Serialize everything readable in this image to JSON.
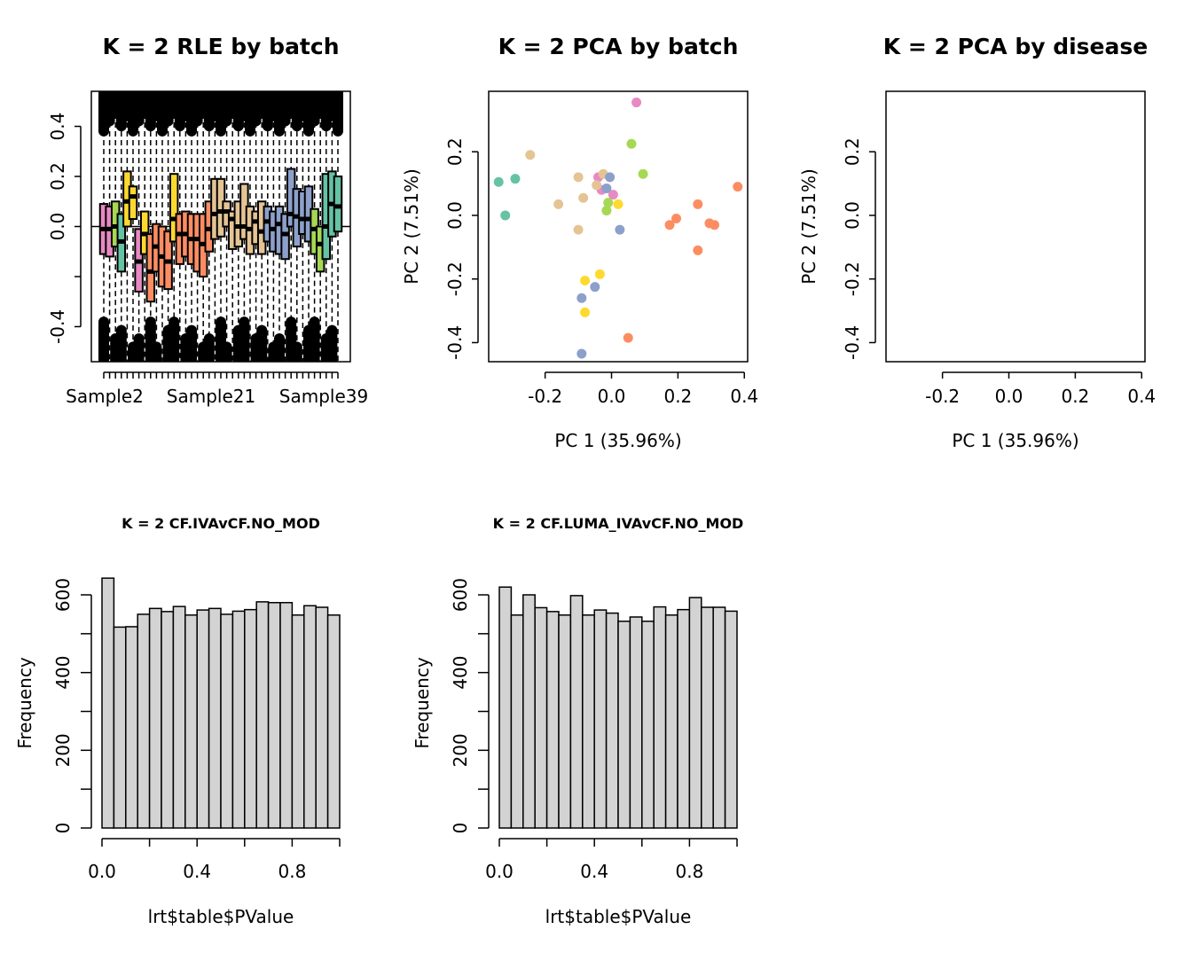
{
  "chart_data": [
    {
      "type": "box",
      "title": "K = 2 RLE by batch",
      "x_tick_labels": [
        "Sample2",
        "Sample21",
        "Sample39"
      ],
      "ylim": [
        -0.54,
        0.54
      ],
      "yticks": [
        -0.4,
        0.0,
        0.2,
        0.4
      ],
      "reference_line": 0,
      "boxes": [
        {
          "batch": 1,
          "q1": -0.11,
          "median": -0.01,
          "q3": 0.09
        },
        {
          "batch": 1,
          "q1": -0.12,
          "median": -0.01,
          "q3": 0.08
        },
        {
          "batch": 2,
          "q1": -0.08,
          "median": 0.0,
          "q3": 0.1
        },
        {
          "batch": 3,
          "q1": -0.18,
          "median": -0.06,
          "q3": 0.05
        },
        {
          "batch": 4,
          "q1": 0.0,
          "median": 0.1,
          "q3": 0.22
        },
        {
          "batch": 4,
          "q1": 0.03,
          "median": 0.12,
          "q3": 0.16
        },
        {
          "batch": 1,
          "q1": -0.26,
          "median": -0.14,
          "q3": -0.01
        },
        {
          "batch": 4,
          "q1": -0.11,
          "median": -0.03,
          "q3": 0.06
        },
        {
          "batch": 5,
          "q1": -0.3,
          "median": -0.18,
          "q3": -0.03
        },
        {
          "batch": 5,
          "q1": -0.18,
          "median": -0.08,
          "q3": 0.01
        },
        {
          "batch": 5,
          "q1": -0.24,
          "median": -0.12,
          "q3": 0.0
        },
        {
          "batch": 5,
          "q1": -0.25,
          "median": -0.14,
          "q3": -0.02
        },
        {
          "batch": 4,
          "q1": -0.06,
          "median": 0.03,
          "q3": 0.21
        },
        {
          "batch": 5,
          "q1": -0.15,
          "median": -0.03,
          "q3": 0.05
        },
        {
          "batch": 5,
          "q1": -0.12,
          "median": -0.03,
          "q3": 0.06
        },
        {
          "batch": 5,
          "q1": -0.15,
          "median": -0.05,
          "q3": 0.05
        },
        {
          "batch": 5,
          "q1": -0.18,
          "median": -0.05,
          "q3": 0.05
        },
        {
          "batch": 5,
          "q1": -0.2,
          "median": -0.07,
          "q3": 0.05
        },
        {
          "batch": 5,
          "q1": -0.1,
          "median": -0.01,
          "q3": 0.1
        },
        {
          "batch": 6,
          "q1": -0.05,
          "median": 0.05,
          "q3": 0.19
        },
        {
          "batch": 6,
          "q1": -0.04,
          "median": 0.06,
          "q3": 0.19
        },
        {
          "batch": 6,
          "q1": 0.0,
          "median": 0.06,
          "q3": 0.1
        },
        {
          "batch": 6,
          "q1": -0.09,
          "median": 0.03,
          "q3": 0.06
        },
        {
          "batch": 6,
          "q1": -0.08,
          "median": 0.0,
          "q3": 0.1
        },
        {
          "batch": 6,
          "q1": -0.05,
          "median": 0.0,
          "q3": 0.17
        },
        {
          "batch": 6,
          "q1": -0.11,
          "median": -0.01,
          "q3": 0.08
        },
        {
          "batch": 6,
          "q1": -0.07,
          "median": 0.02,
          "q3": 0.06
        },
        {
          "batch": 6,
          "q1": -0.11,
          "median": -0.02,
          "q3": 0.1
        },
        {
          "batch": 7,
          "q1": -0.06,
          "median": 0.02,
          "q3": 0.08
        },
        {
          "batch": 7,
          "q1": -0.1,
          "median": -0.01,
          "q3": 0.06
        },
        {
          "batch": 7,
          "q1": -0.11,
          "median": 0.01,
          "q3": 0.08
        },
        {
          "batch": 7,
          "q1": -0.13,
          "median": -0.03,
          "q3": 0.05
        },
        {
          "batch": 7,
          "q1": 0.0,
          "median": 0.05,
          "q3": 0.23
        },
        {
          "batch": 7,
          "q1": -0.08,
          "median": 0.04,
          "q3": 0.15
        },
        {
          "batch": 7,
          "q1": -0.03,
          "median": 0.03,
          "q3": 0.14
        },
        {
          "batch": 7,
          "q1": -0.06,
          "median": 0.03,
          "q3": 0.16
        },
        {
          "batch": 2,
          "q1": -0.11,
          "median": -0.01,
          "q3": 0.07
        },
        {
          "batch": 2,
          "q1": -0.18,
          "median": -0.07,
          "q3": 0.0
        },
        {
          "batch": 8,
          "q1": -0.13,
          "median": 0.0,
          "q3": 0.21
        },
        {
          "batch": 8,
          "q1": -0.04,
          "median": 0.09,
          "q3": 0.22
        },
        {
          "batch": 8,
          "q1": -0.02,
          "median": 0.08,
          "q3": 0.2
        }
      ]
    },
    {
      "type": "scatter",
      "title": "K = 2 PCA by batch",
      "xlabel": "PC 1 (35.96%)",
      "ylabel": "PC 2 (7.51%)",
      "xlim": [
        -0.37,
        0.41
      ],
      "ylim": [
        -0.46,
        0.39
      ],
      "xticks": [
        -0.2,
        0.0,
        0.2,
        0.4
      ],
      "yticks": [
        -0.4,
        -0.2,
        0.0,
        0.2
      ],
      "points": [
        {
          "x": 0.075,
          "y": 0.355,
          "batch": 1
        },
        {
          "x": -0.04,
          "y": 0.12,
          "batch": 1
        },
        {
          "x": -0.03,
          "y": 0.08,
          "batch": 1
        },
        {
          "x": 0.005,
          "y": 0.065,
          "batch": 1
        },
        {
          "x": 0.06,
          "y": 0.225,
          "batch": 2
        },
        {
          "x": 0.095,
          "y": 0.13,
          "batch": 2
        },
        {
          "x": -0.01,
          "y": 0.04,
          "batch": 2
        },
        {
          "x": -0.015,
          "y": 0.015,
          "batch": 2
        },
        {
          "x": -0.34,
          "y": 0.105,
          "batch": 3
        },
        {
          "x": -0.29,
          "y": 0.115,
          "batch": 3
        },
        {
          "x": -0.32,
          "y": 0.0,
          "batch": 3
        },
        {
          "x": 0.02,
          "y": 0.035,
          "batch": 4
        },
        {
          "x": -0.08,
          "y": -0.205,
          "batch": 4
        },
        {
          "x": -0.035,
          "y": -0.185,
          "batch": 4
        },
        {
          "x": -0.08,
          "y": -0.305,
          "batch": 4
        },
        {
          "x": 0.38,
          "y": 0.09,
          "batch": 5
        },
        {
          "x": 0.26,
          "y": 0.035,
          "batch": 5
        },
        {
          "x": 0.195,
          "y": -0.01,
          "batch": 5
        },
        {
          "x": 0.175,
          "y": -0.03,
          "batch": 5
        },
        {
          "x": 0.295,
          "y": -0.025,
          "batch": 5
        },
        {
          "x": 0.31,
          "y": -0.03,
          "batch": 5
        },
        {
          "x": 0.26,
          "y": -0.11,
          "batch": 5
        },
        {
          "x": 0.05,
          "y": -0.385,
          "batch": 5
        },
        {
          "x": -0.245,
          "y": 0.19,
          "batch": 6
        },
        {
          "x": -0.1,
          "y": 0.12,
          "batch": 6
        },
        {
          "x": -0.045,
          "y": 0.095,
          "batch": 6
        },
        {
          "x": -0.025,
          "y": 0.13,
          "batch": 6
        },
        {
          "x": -0.085,
          "y": 0.055,
          "batch": 6
        },
        {
          "x": -0.16,
          "y": 0.035,
          "batch": 6
        },
        {
          "x": -0.1,
          "y": -0.045,
          "batch": 6
        },
        {
          "x": -0.015,
          "y": 0.085,
          "batch": 7
        },
        {
          "x": -0.005,
          "y": 0.12,
          "batch": 7
        },
        {
          "x": 0.025,
          "y": -0.045,
          "batch": 7
        },
        {
          "x": -0.09,
          "y": -0.26,
          "batch": 7
        },
        {
          "x": -0.05,
          "y": -0.225,
          "batch": 7
        },
        {
          "x": -0.09,
          "y": -0.435,
          "batch": 7
        }
      ]
    },
    {
      "type": "scatter",
      "title": "K = 2 PCA by disease",
      "xlabel": "PC 1 (35.96%)",
      "ylabel": "PC 2 (7.51%)",
      "xlim": [
        -0.37,
        0.41
      ],
      "ylim": [
        -0.46,
        0.39
      ],
      "xticks": [
        -0.2,
        0.0,
        0.2,
        0.4
      ],
      "yticks": [
        -0.4,
        -0.2,
        0.0,
        0.2
      ],
      "points": []
    },
    {
      "type": "bar",
      "title": "K = 2 CF.IVAvCF.NO_MOD",
      "xlabel": "lrt$table$PValue",
      "ylabel": "Frequency",
      "xticks": [
        0.0,
        0.4,
        0.8
      ],
      "yticks": [
        0,
        200,
        400,
        600
      ],
      "bin_width": 0.05,
      "bin_start": 0,
      "values": [
        643,
        517,
        518,
        550,
        565,
        557,
        570,
        548,
        561,
        565,
        550,
        558,
        562,
        582,
        580,
        580,
        548,
        572,
        568,
        548
      ]
    },
    {
      "type": "bar",
      "title": "K = 2 CF.LUMA_IVAvCF.NO_MOD",
      "xlabel": "lrt$table$PValue",
      "ylabel": "Frequency",
      "xticks": [
        0.0,
        0.4,
        0.8
      ],
      "yticks": [
        0,
        200,
        400,
        600
      ],
      "bin_width": 0.05,
      "bin_start": 0,
      "values": [
        620,
        548,
        600,
        567,
        557,
        548,
        598,
        548,
        561,
        553,
        532,
        543,
        532,
        569,
        548,
        562,
        593,
        568,
        568,
        558
      ]
    }
  ],
  "colors": {
    "batch_palette": [
      "#e78ac3",
      "#a6d854",
      "#66c2a5",
      "#ffd92f",
      "#fc8d62",
      "#e5c494",
      "#8da0cb",
      "#66c2a5"
    ],
    "bar_fill": "#d3d3d3",
    "whisker_outlier": "#000000"
  }
}
